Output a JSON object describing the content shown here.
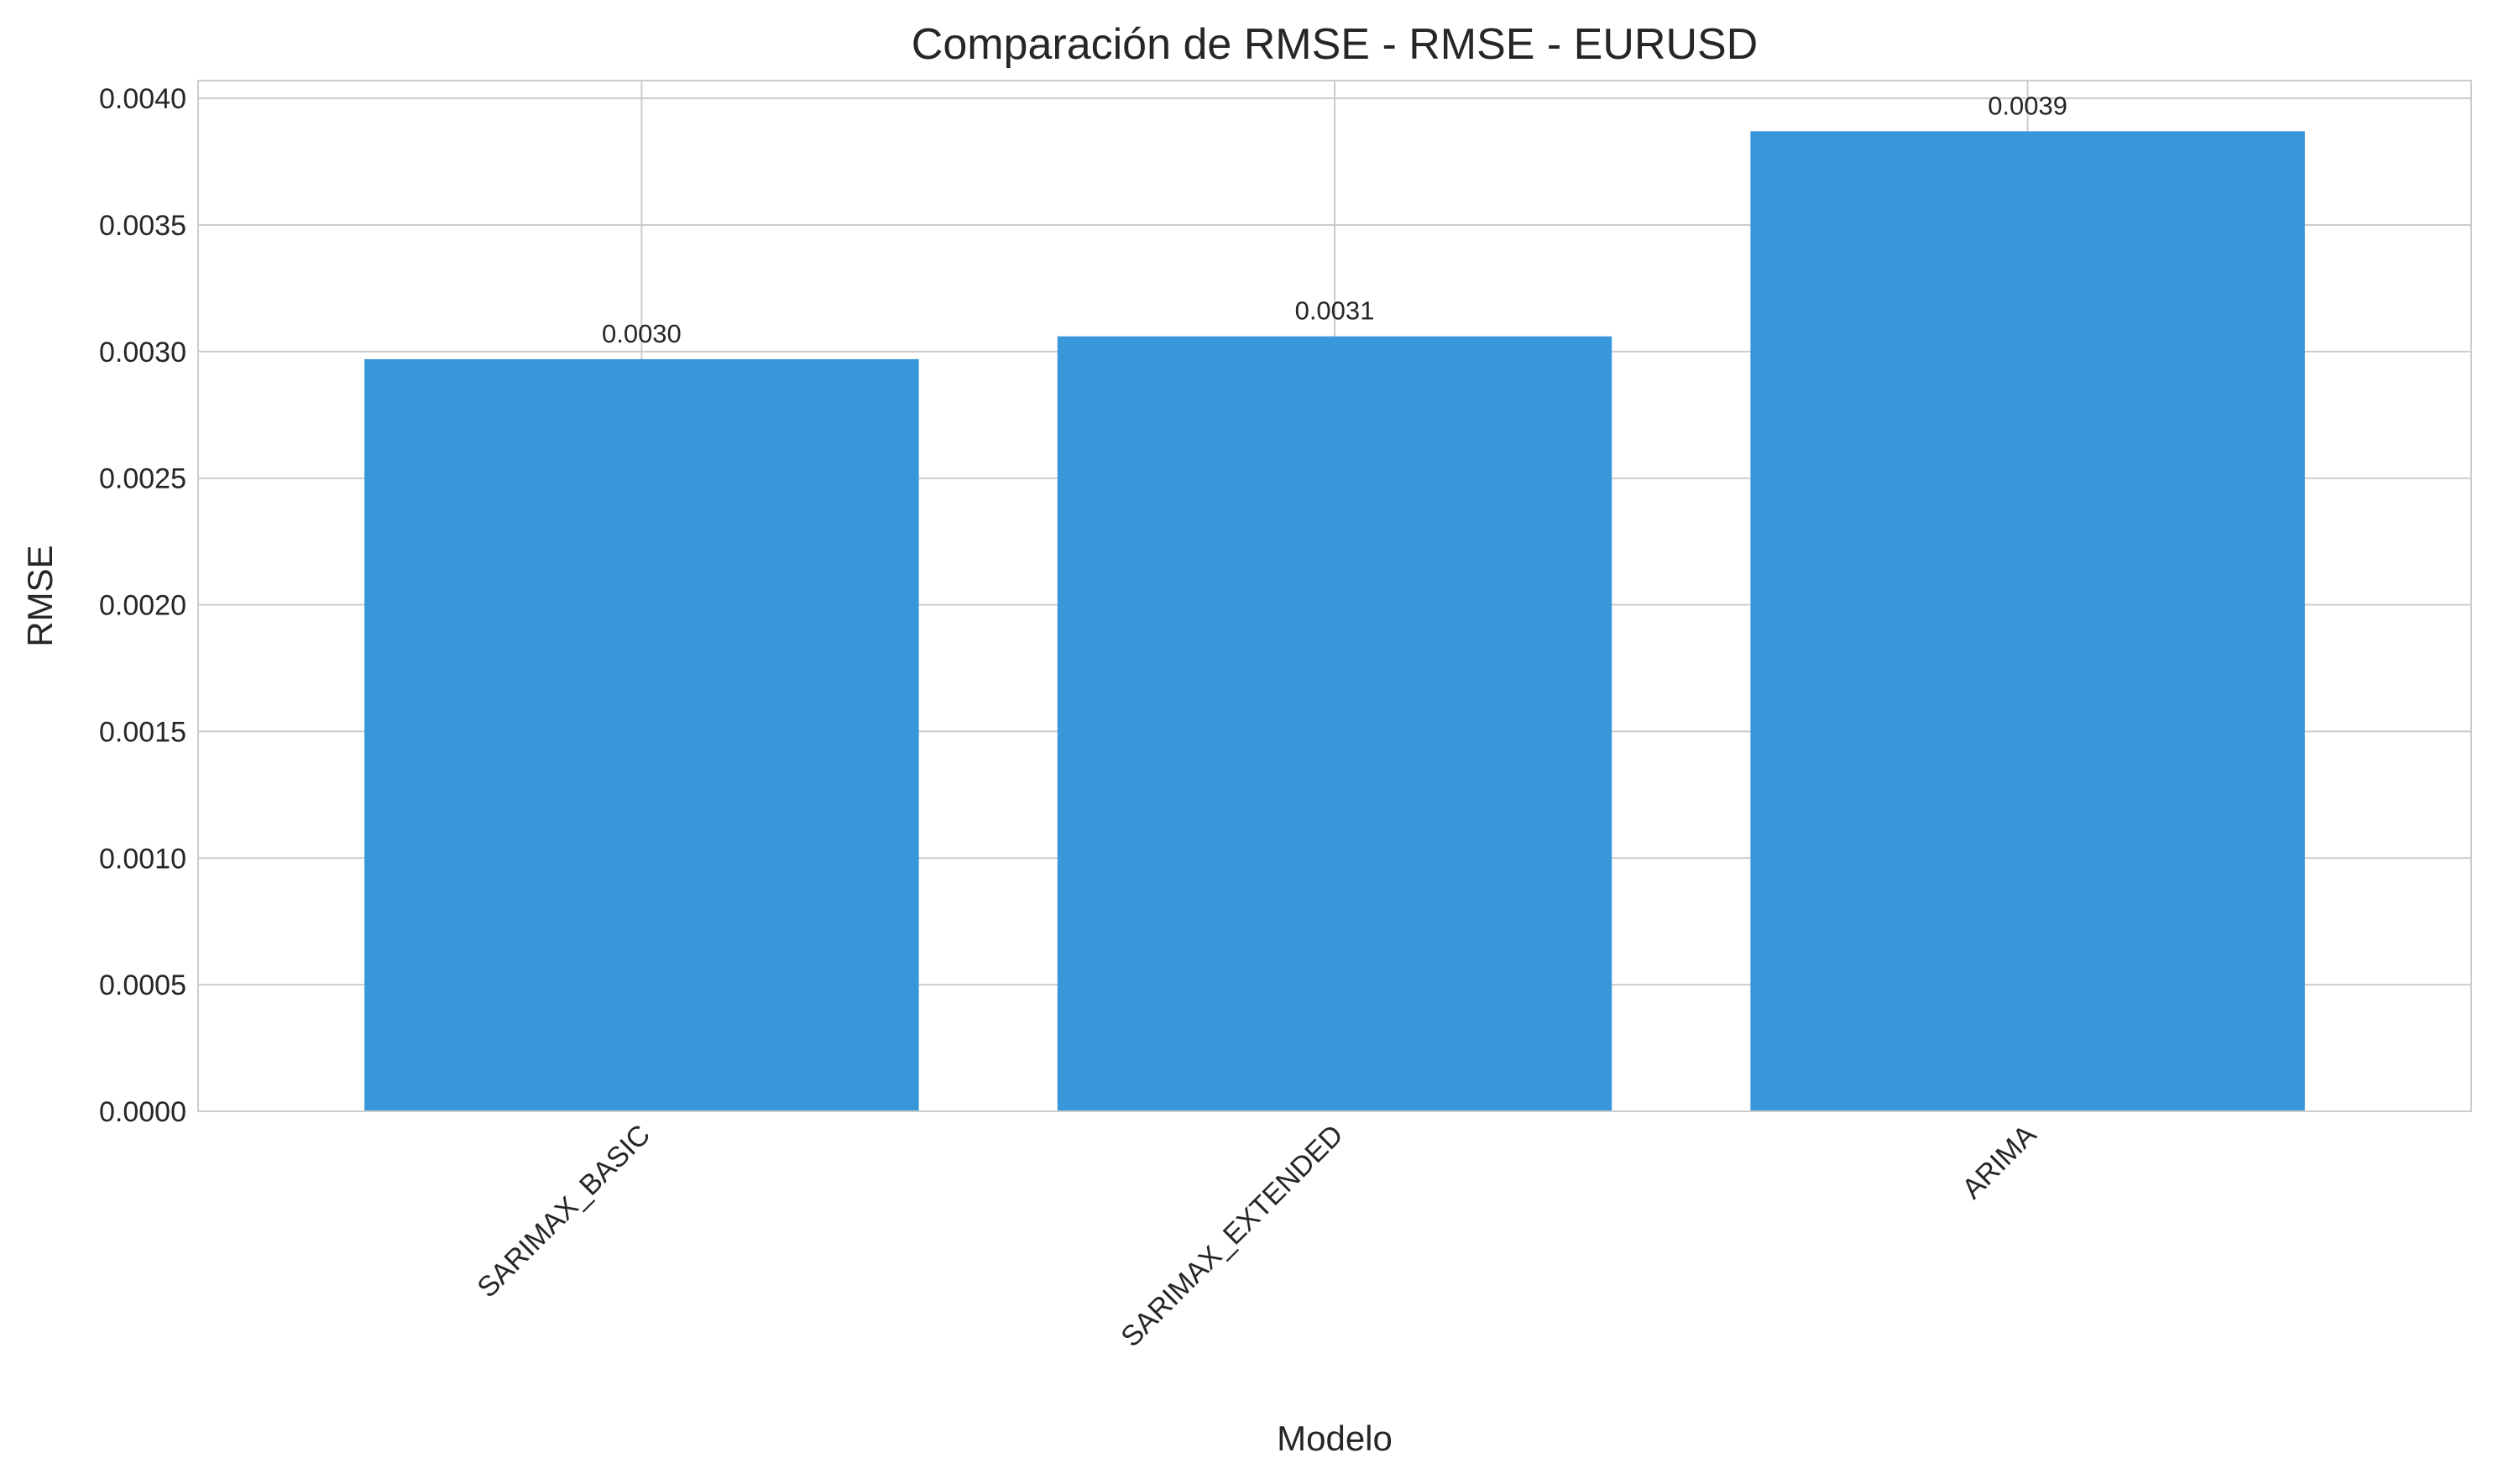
{
  "chart_data": {
    "type": "bar",
    "title": "Comparación de RMSE - RMSE - EURUSD",
    "xlabel": "Modelo",
    "ylabel": "RMSE",
    "categories": [
      "SARIMAX_BASIC",
      "SARIMAX_EXTENDED",
      "ARIMA"
    ],
    "values": [
      0.00297,
      0.00306,
      0.00387
    ],
    "value_labels": [
      "0.0030",
      "0.0031",
      "0.0039"
    ],
    "ylim": [
      0,
      0.00407
    ],
    "yticks": [
      0,
      0.0005,
      0.001,
      0.0015,
      0.002,
      0.0025,
      0.003,
      0.0035,
      0.004
    ],
    "ytick_labels": [
      "0.0000",
      "0.0005",
      "0.0010",
      "0.0015",
      "0.0020",
      "0.0025",
      "0.0030",
      "0.0035",
      "0.0040"
    ],
    "grid": true,
    "bar_color": "#3797d9",
    "grid_color": "#cccccc"
  }
}
